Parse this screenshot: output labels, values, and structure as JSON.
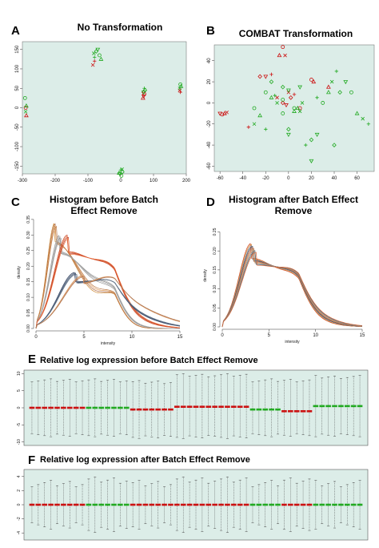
{
  "colors": {
    "panel_bg": "#dcede8",
    "red": "#cc1111",
    "green": "#22aa22"
  },
  "panels": {
    "A": {
      "letter": "A",
      "title": "No Transformation"
    },
    "B": {
      "letter": "B",
      "title": "COMBAT Transformation"
    },
    "C": {
      "letter": "C",
      "title_line1": "Histogram before Batch",
      "title_line2": "Effect Remove",
      "xlabel": "intensity",
      "ylabel": "density"
    },
    "D": {
      "letter": "D",
      "title_line1": "Histogram after Batch Effect",
      "title_line2": "Remove",
      "xlabel": "intensity",
      "ylabel": "density"
    },
    "E": {
      "letter": "E",
      "title": "Relative log expression before Batch Effect Remove"
    },
    "F": {
      "letter": "F",
      "title": "Relative log expression after Batch Effect Remove"
    }
  },
  "chart_data": [
    {
      "id": "A",
      "type": "scatter",
      "title": "No Transformation",
      "xlim": [
        -300,
        200
      ],
      "ylim": [
        -170,
        170
      ],
      "xticks": [
        -300,
        -200,
        -100,
        0,
        100,
        200
      ],
      "yticks": [
        -150,
        -100,
        -50,
        0,
        50,
        100,
        150
      ],
      "series": [
        {
          "color": "red",
          "points": [
            [
              -290,
              0
            ],
            [
              -288,
              -20
            ],
            [
              -85,
              110
            ],
            [
              -80,
              120
            ],
            [
              70,
              40
            ],
            [
              70,
              30
            ],
            [
              72,
              35
            ],
            [
              68,
              25
            ],
            [
              180,
              45
            ],
            [
              182,
              40
            ]
          ]
        },
        {
          "color": "green",
          "points": [
            [
              -292,
              25
            ],
            [
              -288,
              5
            ],
            [
              -290,
              -10
            ],
            [
              -80,
              130
            ],
            [
              -75,
              145
            ],
            [
              -70,
              150
            ],
            [
              -65,
              135
            ],
            [
              -60,
              125
            ],
            [
              -82,
              140
            ],
            [
              72,
              50
            ],
            [
              74,
              45
            ],
            [
              70,
              40
            ],
            [
              182,
              60
            ],
            [
              184,
              55
            ],
            [
              180,
              50
            ],
            [
              0,
              -160
            ],
            [
              5,
              -165
            ],
            [
              -3,
              -170
            ],
            [
              2,
              -175
            ],
            [
              -5,
              -168
            ],
            [
              4,
              -158
            ]
          ]
        }
      ]
    },
    {
      "id": "B",
      "type": "scatter",
      "title": "COMBAT Transformation",
      "xlim": [
        -65,
        75
      ],
      "ylim": [
        -65,
        55
      ],
      "xticks": [
        -60,
        -40,
        -20,
        0,
        20,
        40,
        60
      ],
      "yticks": [
        -60,
        -40,
        -20,
        0,
        20,
        40
      ],
      "series": [
        {
          "color": "red",
          "points": [
            [
              -5,
              53
            ],
            [
              -8,
              45
            ],
            [
              -3,
              45
            ],
            [
              -15,
              27
            ],
            [
              -25,
              25
            ],
            [
              -20,
              25
            ],
            [
              20,
              22
            ],
            [
              22,
              20
            ],
            [
              0,
              10
            ],
            [
              5,
              8
            ],
            [
              2,
              5
            ],
            [
              -60,
              -10
            ],
            [
              -58,
              -11
            ],
            [
              -56,
              -10
            ],
            [
              -54,
              -9
            ],
            [
              -35,
              -23
            ],
            [
              -5,
              0
            ],
            [
              -2,
              -2
            ],
            [
              10,
              -5
            ],
            [
              35,
              15
            ],
            [
              -10,
              5
            ]
          ]
        },
        {
          "color": "green",
          "points": [
            [
              -20,
              10
            ],
            [
              -15,
              5
            ],
            [
              -10,
              0
            ],
            [
              -12,
              7
            ],
            [
              -5,
              15
            ],
            [
              0,
              12
            ],
            [
              -30,
              -5
            ],
            [
              -25,
              -12
            ],
            [
              -30,
              -20
            ],
            [
              -20,
              -25
            ],
            [
              0,
              -25
            ],
            [
              0,
              -30
            ],
            [
              5,
              -5
            ],
            [
              8,
              -5
            ],
            [
              10,
              -8
            ],
            [
              15,
              -40
            ],
            [
              20,
              -35
            ],
            [
              25,
              -30
            ],
            [
              30,
              0
            ],
            [
              35,
              10
            ],
            [
              38,
              20
            ],
            [
              42,
              30
            ],
            [
              45,
              10
            ],
            [
              50,
              20
            ],
            [
              55,
              10
            ],
            [
              60,
              -10
            ],
            [
              65,
              -15
            ],
            [
              70,
              -20
            ],
            [
              40,
              -40
            ],
            [
              20,
              -55
            ],
            [
              -5,
              -10
            ],
            [
              5,
              -8
            ],
            [
              12,
              0
            ],
            [
              25,
              5
            ],
            [
              -15,
              20
            ],
            [
              10,
              15
            ],
            [
              -5,
              3
            ]
          ]
        }
      ]
    },
    {
      "id": "C",
      "type": "line",
      "xlabel": "intensity",
      "ylabel": "density",
      "xlim": [
        0,
        15
      ],
      "ylim": [
        0,
        0.36
      ],
      "xticks": [
        0,
        5,
        10,
        15
      ],
      "yticks": [
        0.0,
        0.05,
        0.1,
        0.15,
        0.2,
        0.25,
        0.3,
        0.35
      ],
      "density_groups": [
        {
          "peak_x": 2.1,
          "peak_y": 0.34,
          "count": 4,
          "colors": [
            "#cc8833",
            "#aa6644",
            "#dd9955",
            "#bb7744"
          ]
        },
        {
          "peak_x": 2.6,
          "peak_y": 0.3,
          "count": 4,
          "colors": [
            "#999999",
            "#bbbbbb",
            "#888888",
            "#aaaaaa"
          ]
        },
        {
          "peak_x": 3.4,
          "peak_y": 0.3,
          "count": 4,
          "colors": [
            "#cc4422",
            "#dd6633",
            "#bb3322",
            "#ee7744"
          ]
        },
        {
          "peak_x": 4.2,
          "peak_y": 0.18,
          "count": 4,
          "colors": [
            "#334466",
            "#556677",
            "#445577",
            "#667788"
          ]
        },
        {
          "peak_x": 5.0,
          "peak_y": 0.17,
          "count": 3,
          "colors": [
            "#cc9966",
            "#dd8855",
            "#aa7755"
          ]
        }
      ]
    },
    {
      "id": "D",
      "type": "line",
      "xlabel": "intensity",
      "ylabel": "density",
      "xlim": [
        0,
        15
      ],
      "ylim": [
        0,
        0.27
      ],
      "xticks": [
        0,
        5,
        10,
        15
      ],
      "yticks": [
        0.0,
        0.05,
        0.1,
        0.15,
        0.2,
        0.25
      ],
      "density_groups": [
        {
          "peak_x": 3.4,
          "peak_y": 0.22,
          "count": 10,
          "colors": [
            "#cc4422",
            "#dd8833",
            "#999999",
            "#334466",
            "#aa6644",
            "#bb7755",
            "#cc9966",
            "#888888",
            "#556677",
            "#dd6633"
          ]
        }
      ]
    },
    {
      "id": "E",
      "type": "boxplot",
      "title": "Relative log expression before Batch Effect Remove",
      "ylim": [
        -11,
        11
      ],
      "yticks": [
        -10,
        -5,
        0,
        5,
        10
      ],
      "groups": [
        {
          "color": "red",
          "count": 9,
          "median": 0,
          "lower": -8,
          "upper": 8
        },
        {
          "color": "green",
          "count": 7,
          "median": 0,
          "lower": -8,
          "upper": 8
        },
        {
          "color": "red",
          "count": 7,
          "median": -0.5,
          "lower": -8.5,
          "upper": 7.5
        },
        {
          "color": "red",
          "count": 12,
          "median": 0.3,
          "lower": -8.5,
          "upper": 9.5
        },
        {
          "color": "green",
          "count": 5,
          "median": -0.5,
          "lower": -8,
          "upper": 8
        },
        {
          "color": "red",
          "count": 5,
          "median": -1,
          "lower": -8,
          "upper": 8
        },
        {
          "color": "green",
          "count": 8,
          "median": 0.5,
          "lower": -8,
          "upper": 9
        }
      ]
    },
    {
      "id": "F",
      "type": "boxplot",
      "title": "Relative log expression after Batch Effect Remove",
      "ylim": [
        -5,
        5
      ],
      "yticks": [
        -4,
        -2,
        0,
        2,
        4
      ],
      "groups": [
        {
          "color": "red",
          "count": 9,
          "median": 0,
          "lower": -3,
          "upper": 3
        },
        {
          "color": "green",
          "count": 7,
          "median": 0,
          "lower": -3.5,
          "upper": 3.5
        },
        {
          "color": "red",
          "count": 7,
          "median": 0,
          "lower": -3,
          "upper": 3
        },
        {
          "color": "red",
          "count": 12,
          "median": 0,
          "lower": -3.5,
          "upper": 3.5
        },
        {
          "color": "green",
          "count": 5,
          "median": 0,
          "lower": -3,
          "upper": 3
        },
        {
          "color": "red",
          "count": 5,
          "median": 0,
          "lower": -3.5,
          "upper": 3.5
        },
        {
          "color": "green",
          "count": 8,
          "median": 0,
          "lower": -3,
          "upper": 3
        }
      ]
    }
  ]
}
